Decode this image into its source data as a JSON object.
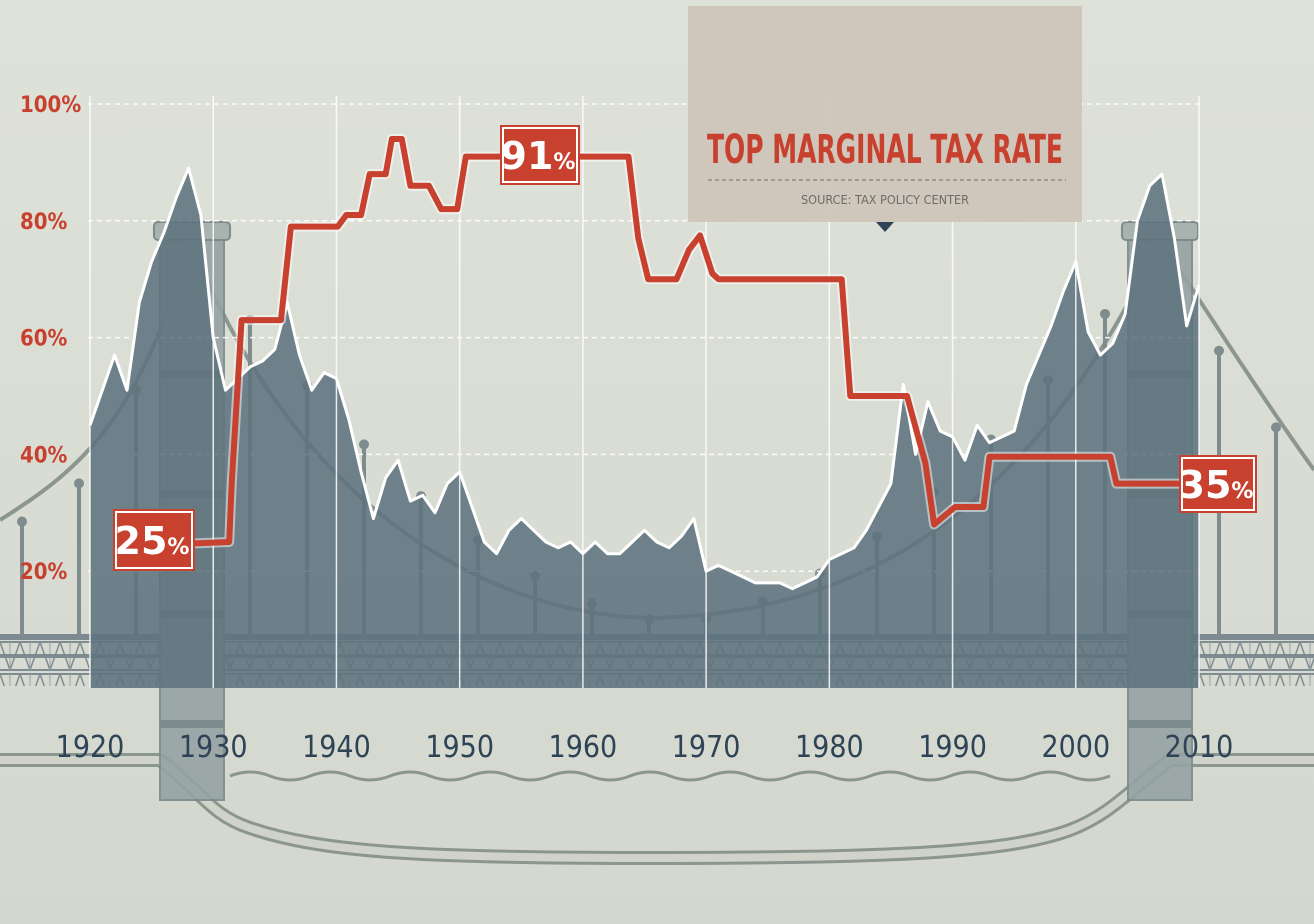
{
  "chart_data": {
    "type": "line",
    "title": "TOP MARGINAL TAX RATE",
    "subtitle": "SOURCE: TAX POLICY CENTER",
    "x_ticks": [
      1920,
      1930,
      1940,
      1950,
      1960,
      1970,
      1980,
      1990,
      2000,
      2010
    ],
    "y_ticks": [
      "20%",
      "40%",
      "60%",
      "80%",
      "100%"
    ],
    "y_tick_values": [
      20,
      40,
      60,
      80,
      100
    ],
    "xlim": [
      1920,
      2010
    ],
    "ylim": [
      0,
      100
    ],
    "grid": true,
    "colors": {
      "tax_line": "#c8402e",
      "area_fill": "#5e737e",
      "area_stroke": "#ffffff",
      "background": "#dcdfd6",
      "title_box": "#cfc6bb",
      "tick_y": "#c8402e",
      "tick_x": "#2e4456"
    },
    "series": [
      {
        "type": "line",
        "values_x": [
          1925.5,
          1931.3,
          1931.5,
          1932.3,
          1935.5,
          1936.3,
          1940.1,
          1940.8,
          1942.0,
          1942.7,
          1944.0,
          1944.5,
          1945.3,
          1946.0,
          1947.5,
          1948.5,
          1949.8,
          1950.5,
          1963.7,
          1964.5,
          1965.3,
          1967.6,
          1968.6,
          1969.5,
          1970.5,
          1971.0,
          1981.0,
          1981.7,
          1986.0,
          1986.3,
          1987.8,
          1988.5,
          1990.2,
          1992.5,
          1993.0,
          2002.8,
          2003.3,
          2010.0
        ],
        "values_y": [
          24.5,
          25,
          35,
          63,
          63,
          79,
          79,
          81,
          81,
          88,
          88,
          94,
          94,
          86,
          86,
          82,
          82,
          91,
          91,
          77,
          70,
          70,
          75,
          77.5,
          71,
          70,
          70,
          50,
          50,
          50,
          38.5,
          28,
          31,
          31,
          39.6,
          39.6,
          35,
          35
        ],
        "labels": [
          {
            "text": "25",
            "unit": "%"
          },
          {
            "text": "91",
            "unit": "%"
          },
          {
            "text": "35",
            "unit": "%"
          }
        ]
      },
      {
        "type": "area",
        "values_x": [
          1920,
          1921,
          1922,
          1923,
          1924,
          1925,
          1926,
          1927,
          1928,
          1929,
          1930,
          1931,
          1932,
          1933,
          1934,
          1935,
          1936,
          1937,
          1938,
          1939,
          1940,
          1941,
          1942,
          1943,
          1944,
          1945,
          1946,
          1947,
          1948,
          1949,
          1950,
          1951,
          1952,
          1953,
          1954,
          1955,
          1956,
          1957,
          1958,
          1959,
          1960,
          1961,
          1962,
          1963,
          1964,
          1965,
          1966,
          1967,
          1968,
          1969,
          1970,
          1971,
          1972,
          1973,
          1974,
          1975,
          1976,
          1977,
          1978,
          1979,
          1980,
          1981,
          1982,
          1983,
          1984,
          1985,
          1986,
          1987,
          1988,
          1989,
          1990,
          1991,
          1992,
          1993,
          1994,
          1995,
          1996,
          1997,
          1998,
          1999,
          2000,
          2001,
          2002,
          2003,
          2004,
          2005,
          2006,
          2007,
          2008,
          2009,
          2010
        ],
        "values_y": [
          45,
          51,
          57,
          51,
          66,
          73,
          78,
          84,
          89,
          81,
          60,
          51,
          53,
          55,
          56,
          58,
          66,
          57,
          51,
          54,
          53,
          46,
          37,
          29,
          36,
          39,
          32,
          33,
          30,
          35,
          37,
          31,
          25,
          23,
          27,
          29,
          27,
          25,
          24,
          25,
          23,
          25,
          23,
          23,
          25,
          27,
          25,
          24,
          26,
          29,
          20,
          21,
          20,
          19,
          18,
          18,
          18,
          17,
          18,
          19,
          22,
          23,
          24,
          27,
          31,
          35,
          52,
          40,
          49,
          44,
          43,
          39,
          45,
          42,
          43,
          44,
          52,
          57,
          62,
          68,
          73,
          61,
          57,
          59,
          64,
          80,
          86,
          88,
          77,
          62,
          69
        ]
      }
    ]
  }
}
